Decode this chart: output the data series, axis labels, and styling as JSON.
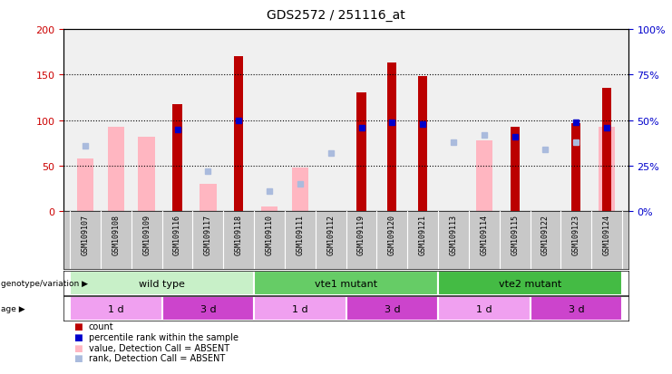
{
  "title": "GDS2572 / 251116_at",
  "samples": [
    "GSM109107",
    "GSM109108",
    "GSM109109",
    "GSM109116",
    "GSM109117",
    "GSM109118",
    "GSM109110",
    "GSM109111",
    "GSM109112",
    "GSM109119",
    "GSM109120",
    "GSM109121",
    "GSM109113",
    "GSM109114",
    "GSM109115",
    "GSM109122",
    "GSM109123",
    "GSM109124"
  ],
  "count": [
    0,
    0,
    0,
    117,
    0,
    170,
    0,
    0,
    0,
    130,
    163,
    148,
    0,
    0,
    93,
    0,
    97,
    135
  ],
  "percentile": [
    0,
    0,
    0,
    45,
    0,
    50,
    0,
    0,
    0,
    46,
    49,
    48,
    0,
    0,
    41,
    0,
    49,
    46
  ],
  "absent_value": [
    58,
    93,
    82,
    0,
    30,
    0,
    5,
    48,
    0,
    0,
    0,
    0,
    0,
    78,
    0,
    0,
    0,
    93
  ],
  "absent_rank": [
    36,
    0,
    0,
    0,
    22,
    0,
    11,
    15,
    32,
    0,
    0,
    0,
    38,
    42,
    0,
    34,
    38,
    0
  ],
  "genotype_groups": [
    {
      "label": "wild type",
      "start": 0,
      "end": 5,
      "color": "#c8f0c8"
    },
    {
      "label": "vte1 mutant",
      "start": 6,
      "end": 11,
      "color": "#66cc66"
    },
    {
      "label": "vte2 mutant",
      "start": 12,
      "end": 17,
      "color": "#44bb44"
    }
  ],
  "age_groups": [
    {
      "label": "1 d",
      "start": 0,
      "end": 2,
      "color": "#f0a0f0"
    },
    {
      "label": "3 d",
      "start": 3,
      "end": 5,
      "color": "#cc44cc"
    },
    {
      "label": "1 d",
      "start": 6,
      "end": 8,
      "color": "#f0a0f0"
    },
    {
      "label": "3 d",
      "start": 9,
      "end": 11,
      "color": "#cc44cc"
    },
    {
      "label": "1 d",
      "start": 12,
      "end": 14,
      "color": "#f0a0f0"
    },
    {
      "label": "3 d",
      "start": 15,
      "end": 17,
      "color": "#cc44cc"
    }
  ],
  "ylim_left": [
    0,
    200
  ],
  "ylim_right": [
    0,
    100
  ],
  "count_color": "#bb0000",
  "percentile_color": "#0000cc",
  "absent_value_color": "#ffb6c1",
  "absent_rank_color": "#aabbdd",
  "axis_color_left": "#cc0000",
  "axis_color_right": "#0000cc"
}
